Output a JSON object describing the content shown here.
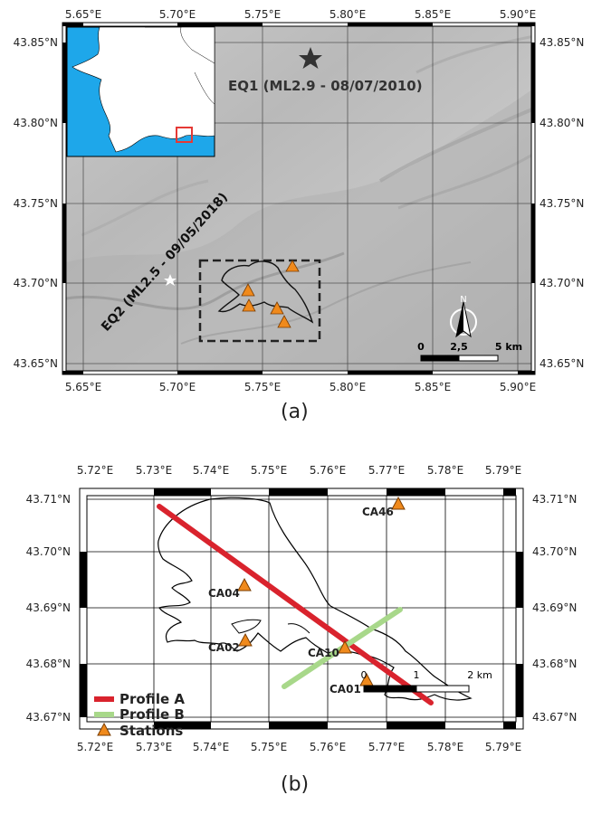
{
  "panel_a": {
    "label": "(a)",
    "lon_ticks": [
      "5.65°E",
      "5.70°E",
      "5.75°E",
      "5.80°E",
      "5.85°E",
      "5.90°E"
    ],
    "lat_ticks": [
      "43.85°N",
      "43.80°N",
      "43.75°N",
      "43.70°N",
      "43.65°N"
    ],
    "eq1_label": "EQ1 (ML2.9 - 08/07/2010)",
    "eq2_label": "EQ2 (ML2.5 - 09/05/2018)",
    "north_label": "N",
    "scale_labels": [
      "0",
      "2,5",
      "5 km"
    ],
    "inset_colors": {
      "sea": "#1ea7ea",
      "land": "#ffffff"
    }
  },
  "panel_b": {
    "label": "(b)",
    "lon_ticks": [
      "5.72°E",
      "5.73°E",
      "5.74°E",
      "5.75°E",
      "5.76°E",
      "5.77°E",
      "5.78°E",
      "5.79°E"
    ],
    "lat_ticks": [
      "43.71°N",
      "43.70°N",
      "43.69°N",
      "43.68°N",
      "43.67°N"
    ],
    "stations": [
      {
        "name": "CA46"
      },
      {
        "name": "CA04"
      },
      {
        "name": "CA02"
      },
      {
        "name": "CA10"
      },
      {
        "name": "CA01"
      }
    ],
    "legend": {
      "profile_a": "Profile A",
      "profile_b": "Profile B",
      "stations": "Stations"
    },
    "scale_labels": [
      "0",
      "1",
      "2 km"
    ],
    "colors": {
      "profile_a": "#d9232d",
      "profile_b": "#a8d88a",
      "station": "#f08a1c"
    }
  }
}
